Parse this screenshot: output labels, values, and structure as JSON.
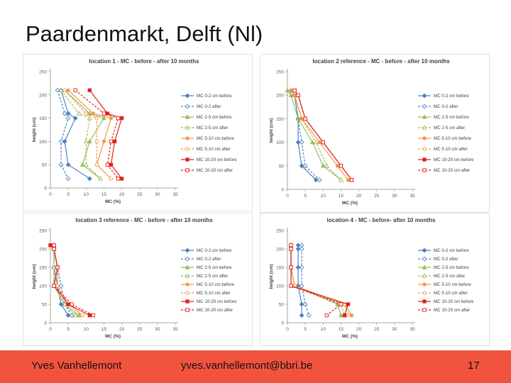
{
  "slide": {
    "title": "Paardenmarkt, Delft (Nl)"
  },
  "footer": {
    "author": "Yves Vanhellemont",
    "email": "yves.vanhellemont@bbri.be",
    "page": "17"
  },
  "colors": {
    "footer_bg": "#f2533f",
    "blue": "#4f81bd",
    "green": "#9bbb59",
    "orange": "#f79646",
    "red": "#e0231b"
  },
  "chart_data": [
    {
      "type": "line",
      "title": "location 1 - MC - before - after 10 months",
      "xlabel": "MC (%)",
      "ylabel": "height (cm)",
      "xlim": [
        0,
        35
      ],
      "ylim": [
        0,
        250
      ],
      "xticks": [
        0,
        5,
        10,
        15,
        20,
        25,
        30,
        35
      ],
      "yticks": [
        0,
        50,
        100,
        150,
        200,
        250
      ],
      "legend": "right",
      "grid": false,
      "series": [
        {
          "name": "MC 0-2 cm before",
          "color": "#4f81bd",
          "dash": false,
          "x": [
            3,
            5,
            7,
            4,
            5,
            11
          ],
          "y": [
            210,
            160,
            150,
            100,
            50,
            20
          ]
        },
        {
          "name": "MC 0-2 after",
          "color": "#4f81bd",
          "dash": true,
          "x": [
            2,
            4,
            5,
            3,
            3,
            5
          ],
          "y": [
            210,
            160,
            150,
            100,
            50,
            20
          ]
        },
        {
          "name": "MC 2-5 cm before",
          "color": "#9bbb59",
          "dash": false,
          "x": [
            4,
            11,
            15,
            11,
            9,
            14
          ],
          "y": [
            210,
            160,
            150,
            100,
            50,
            20
          ]
        },
        {
          "name": "MC 2-5 cm after",
          "color": "#9bbb59",
          "dash": true,
          "x": [
            3,
            8,
            11,
            10,
            10,
            14
          ],
          "y": [
            210,
            160,
            150,
            100,
            50,
            20
          ]
        },
        {
          "name": "MC 5-10 cm before",
          "color": "#f79646",
          "dash": false,
          "x": [
            5,
            12,
            17,
            15,
            13,
            17
          ],
          "y": [
            210,
            160,
            150,
            100,
            50,
            20
          ]
        },
        {
          "name": "MC 5-10 cm after",
          "color": "#f79646",
          "dash": true,
          "x": [
            4,
            10,
            13,
            13,
            13,
            17
          ],
          "y": [
            210,
            160,
            150,
            100,
            50,
            20
          ]
        },
        {
          "name": "MC 10-20 cm before",
          "color": "#e0231b",
          "dash": false,
          "x": [
            11,
            16,
            20,
            18,
            17,
            20
          ],
          "y": [
            210,
            160,
            150,
            100,
            50,
            20
          ]
        },
        {
          "name": "MC 10-20 cm after",
          "color": "#e0231b",
          "dash": true,
          "x": [
            7,
            15,
            19,
            17,
            16,
            19
          ],
          "y": [
            210,
            160,
            150,
            100,
            50,
            20
          ]
        }
      ]
    },
    {
      "type": "line",
      "title": "location 2 reference - MC - before - after 10 months",
      "xlabel": "MC (%)",
      "ylabel": "height (cm)",
      "xlim": [
        0,
        35
      ],
      "ylim": [
        0,
        250
      ],
      "xticks": [
        0,
        5,
        10,
        15,
        20,
        25,
        30,
        35
      ],
      "yticks": [
        0,
        50,
        100,
        150,
        200,
        250
      ],
      "legend": "right",
      "grid": false,
      "series": [
        {
          "name": "MC 0-2 cm before",
          "color": "#4f81bd",
          "dash": false,
          "x": [
            1,
            2,
            3,
            3,
            4,
            8
          ],
          "y": [
            210,
            200,
            150,
            100,
            50,
            20
          ]
        },
        {
          "name": "MC 0-2 after",
          "color": "#4f81bd",
          "dash": true,
          "x": [
            1,
            2,
            3,
            4,
            5,
            9
          ],
          "y": [
            210,
            200,
            150,
            100,
            50,
            20
          ]
        },
        {
          "name": "MC 2-5 cm before",
          "color": "#9bbb59",
          "dash": false,
          "x": [
            0,
            1,
            3,
            7,
            10,
            15
          ],
          "y": [
            210,
            200,
            150,
            100,
            50,
            20
          ]
        },
        {
          "name": "MC 2-5 cm after",
          "color": "#9bbb59",
          "dash": true,
          "x": [
            1,
            2,
            4,
            8,
            11,
            15
          ],
          "y": [
            210,
            200,
            150,
            100,
            50,
            20
          ]
        },
        {
          "name": "MC 5-10 cm before",
          "color": "#f79646",
          "dash": false,
          "x": [
            1,
            2,
            4,
            9,
            14,
            17
          ],
          "y": [
            210,
            200,
            150,
            100,
            50,
            20
          ]
        },
        {
          "name": "MC 5-10 cm after",
          "color": "#f79646",
          "dash": true,
          "x": [
            2,
            3,
            5,
            10,
            15,
            18
          ],
          "y": [
            210,
            200,
            150,
            100,
            50,
            20
          ]
        },
        {
          "name": "MC 10-20 cm before",
          "color": "#e0231b",
          "dash": false,
          "x": [
            2,
            3,
            5,
            10,
            15,
            18
          ],
          "y": [
            210,
            200,
            150,
            100,
            50,
            20
          ]
        },
        {
          "name": "MC 10-20 cm after",
          "color": "#e0231b",
          "dash": true,
          "x": [
            2,
            3,
            5,
            10,
            15,
            18
          ],
          "y": [
            210,
            200,
            150,
            100,
            50,
            20
          ]
        }
      ]
    },
    {
      "type": "line",
      "title": "location 3 reference - MC - before - after 10 months",
      "xlabel": "MC (%)",
      "ylabel": "height (cm)",
      "xlim": [
        0,
        35
      ],
      "ylim": [
        0,
        250
      ],
      "xticks": [
        0,
        5,
        10,
        15,
        20,
        25,
        30,
        35
      ],
      "yticks": [
        0,
        50,
        100,
        150,
        200,
        250
      ],
      "legend": "right",
      "grid": false,
      "series": [
        {
          "name": "MC 0-2 cm before",
          "color": "#4f81bd",
          "dash": false,
          "x": [
            1,
            1,
            1,
            2,
            3,
            5
          ],
          "y": [
            210,
            200,
            150,
            100,
            50,
            20
          ]
        },
        {
          "name": "MC 0-2 after",
          "color": "#4f81bd",
          "dash": true,
          "x": [
            1,
            1,
            2,
            3,
            4,
            6
          ],
          "y": [
            210,
            200,
            150,
            100,
            50,
            20
          ]
        },
        {
          "name": "MC 2-5 cm before",
          "color": "#9bbb59",
          "dash": false,
          "x": [
            0,
            1,
            1,
            1,
            4,
            8
          ],
          "y": [
            210,
            200,
            150,
            100,
            50,
            20
          ]
        },
        {
          "name": "MC 2-5 cm after",
          "color": "#9bbb59",
          "dash": true,
          "x": [
            0,
            1,
            1,
            1,
            4,
            7
          ],
          "y": [
            210,
            200,
            150,
            100,
            50,
            20
          ]
        },
        {
          "name": "MC 5-10 cm before",
          "color": "#f79646",
          "dash": false,
          "x": [
            0,
            1,
            2,
            2,
            5,
            9
          ],
          "y": [
            210,
            200,
            150,
            100,
            50,
            20
          ]
        },
        {
          "name": "MC 5-10 cm after",
          "color": "#f79646",
          "dash": true,
          "x": [
            0,
            1,
            2,
            2,
            5,
            9
          ],
          "y": [
            210,
            200,
            150,
            100,
            50,
            20
          ]
        },
        {
          "name": "MC 10-20 cm before",
          "color": "#e0231b",
          "dash": false,
          "x": [
            0,
            1,
            2,
            1,
            5,
            11
          ],
          "y": [
            210,
            200,
            150,
            100,
            50,
            20
          ]
        },
        {
          "name": "MC 10-20 cm after",
          "color": "#e0231b",
          "dash": true,
          "x": [
            1,
            1,
            2,
            1,
            6,
            12
          ],
          "y": [
            210,
            200,
            150,
            100,
            50,
            20
          ]
        }
      ]
    },
    {
      "type": "line",
      "title": "location 4 - MC - before- after 10 months",
      "xlabel": "MC (%)",
      "ylabel": "height (cm)",
      "xlim": [
        0,
        35
      ],
      "ylim": [
        0,
        250
      ],
      "xticks": [
        0,
        5,
        10,
        15,
        20,
        25,
        30,
        35
      ],
      "yticks": [
        0,
        50,
        100,
        150,
        200,
        250
      ],
      "legend": "right",
      "grid": false,
      "series": [
        {
          "name": "MC 0-2 cm before",
          "color": "#4f81bd",
          "dash": false,
          "x": [
            3,
            3,
            3,
            3,
            4,
            4
          ],
          "y": [
            210,
            200,
            150,
            100,
            50,
            20
          ]
        },
        {
          "name": "MC 0-2 after",
          "color": "#4f81bd",
          "dash": true,
          "x": [
            4,
            4,
            4,
            4,
            5,
            6
          ],
          "y": [
            210,
            200,
            150,
            100,
            50,
            20
          ]
        },
        {
          "name": "MC 2-5 cm before",
          "color": "#9bbb59",
          "dash": false,
          "x": [
            1,
            1,
            1,
            2,
            14,
            15
          ],
          "y": [
            210,
            200,
            150,
            100,
            50,
            20
          ]
        },
        {
          "name": "MC 2-5 cm after",
          "color": "#9bbb59",
          "dash": true,
          "x": [
            1,
            1,
            1,
            2,
            15,
            16
          ],
          "y": [
            210,
            200,
            150,
            100,
            50,
            20
          ]
        },
        {
          "name": "MC 5-10 cm before",
          "color": "#f79646",
          "dash": false,
          "x": [
            1,
            1,
            1,
            2,
            16,
            18
          ],
          "y": [
            210,
            200,
            150,
            100,
            50,
            20
          ]
        },
        {
          "name": "MC 5-10 cm after",
          "color": "#f79646",
          "dash": true,
          "x": [
            1,
            1,
            1,
            2,
            16,
            17
          ],
          "y": [
            210,
            200,
            150,
            100,
            50,
            20
          ]
        },
        {
          "name": "MC 10-20 cm before",
          "color": "#e0231b",
          "dash": false,
          "x": [
            1,
            1,
            1,
            1,
            17,
            16
          ],
          "y": [
            210,
            200,
            150,
            100,
            50,
            20
          ]
        },
        {
          "name": "MC 10-20 cm after",
          "color": "#e0231b",
          "dash": true,
          "x": [
            1,
            1,
            1,
            1,
            15,
            11
          ],
          "y": [
            210,
            200,
            150,
            100,
            50,
            20
          ]
        }
      ]
    }
  ]
}
